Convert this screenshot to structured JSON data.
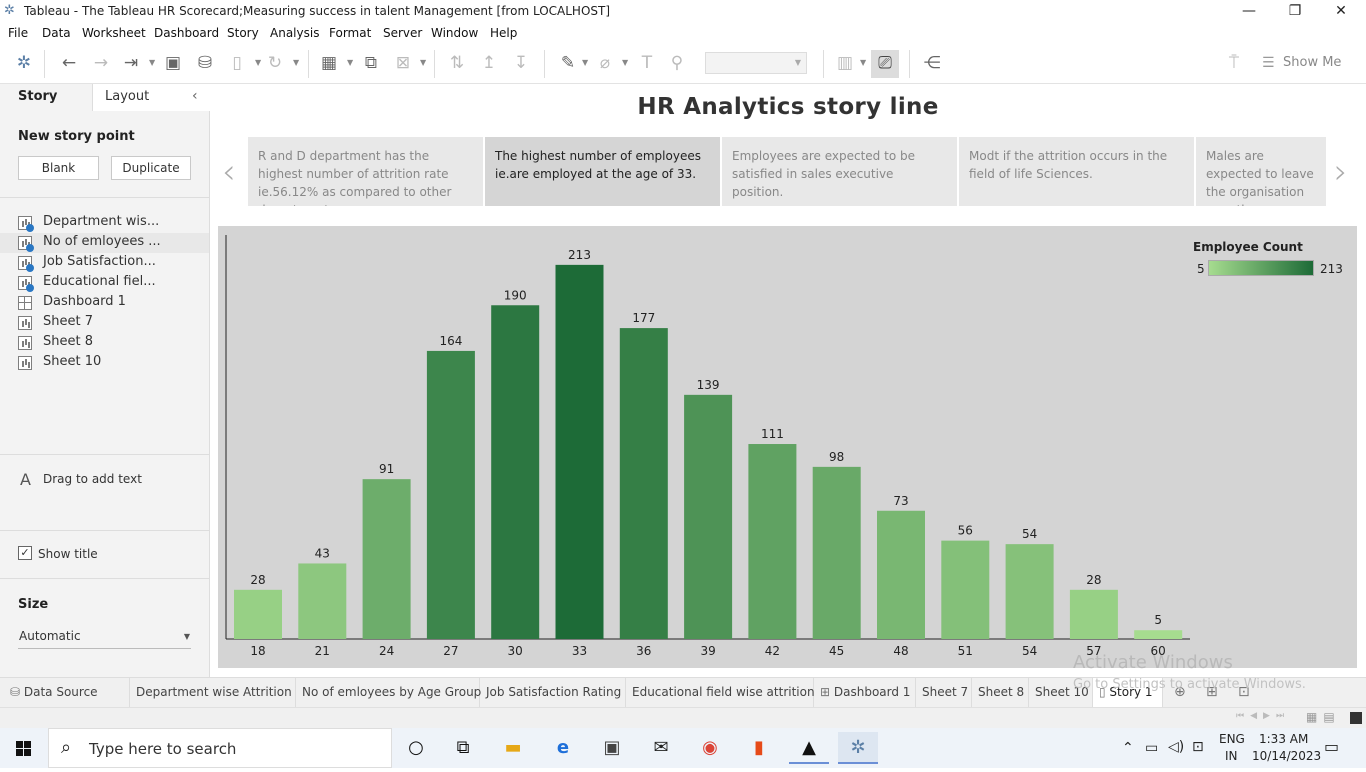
{
  "window": {
    "title": "Tableau - The Tableau HR Scorecard;Measuring success in talent Management [from LOCALHOST]",
    "minimize": "—",
    "restore": "❐",
    "close": "✕"
  },
  "menu": [
    "File",
    "Data",
    "Worksheet",
    "Dashboard",
    "Story",
    "Analysis",
    "Format",
    "Server",
    "Window",
    "Help"
  ],
  "toolbar": {
    "show_me": "Show Me"
  },
  "left_pane": {
    "tab_story": "Story",
    "tab_layout": "Layout",
    "collapse": "‹",
    "new_story_point": "New story point",
    "blank_button": "Blank",
    "duplicate_button": "Duplicate",
    "sheets": [
      {
        "label": "Department wis...",
        "kind": "sheet",
        "used": true
      },
      {
        "label": "No of emloyees ...",
        "kind": "sheet",
        "used": true
      },
      {
        "label": "Job Satisfaction...",
        "kind": "sheet",
        "used": true
      },
      {
        "label": "Educational fiel...",
        "kind": "sheet",
        "used": true
      },
      {
        "label": "Dashboard 1",
        "kind": "dashboard",
        "used": false
      },
      {
        "label": "Sheet 7",
        "kind": "sheet",
        "used": false
      },
      {
        "label": "Sheet 8",
        "kind": "sheet",
        "used": false
      },
      {
        "label": "Sheet 10",
        "kind": "sheet",
        "used": false
      }
    ],
    "text_icon": "A",
    "drag_text": "Drag to add text",
    "show_title": "Show title",
    "size_title": "Size",
    "size_value": "Automatic"
  },
  "story": {
    "title": "HR Analytics story line",
    "prev": "‹",
    "next": "›",
    "points": [
      "R and D department has the highest number of attrition rate ie.56.12% as compared to other departments.",
      "The highest number of employees ie.are employed at the age of 33.",
      "Employees are expected to be satisfied in sales executive position.",
      "Modt if the attrition occurs in the field of life Sciences.",
      "Males are expected to leave the organisation over the"
    ],
    "active_point": 1
  },
  "legend": {
    "title": "Employee Count",
    "min": "5",
    "max": "213",
    "color_low": "#a6dc8f",
    "color_high": "#1d6b37"
  },
  "chart_data": {
    "type": "bar",
    "categories": [
      "18",
      "21",
      "24",
      "27",
      "30",
      "33",
      "36",
      "39",
      "42",
      "45",
      "48",
      "51",
      "54",
      "57",
      "60"
    ],
    "values": [
      28,
      43,
      91,
      164,
      190,
      213,
      177,
      139,
      111,
      98,
      73,
      56,
      54,
      28,
      5
    ],
    "color_measure": "Employee Count",
    "color_range": [
      5,
      213
    ]
  },
  "sheet_tabs": [
    {
      "label": "Data Source",
      "icon": "datasource-icon"
    },
    {
      "label": "Department wise  Attrition"
    },
    {
      "label": "No of emloyees by Age Group"
    },
    {
      "label": "Job Satisfaction Rating"
    },
    {
      "label": "Educational field wise attrition"
    },
    {
      "label": "Dashboard 1",
      "icon": "dashboard-icon"
    },
    {
      "label": "Sheet 7"
    },
    {
      "label": "Sheet 8"
    },
    {
      "label": "Sheet 10"
    },
    {
      "label": "Story 1",
      "icon": "story-icon",
      "active": true
    }
  ],
  "watermark": {
    "line1": "Activate Windows",
    "line2": "Go to Settings to activate Windows."
  },
  "taskbar": {
    "search_placeholder": "Type here to search",
    "lang1": "ENG",
    "lang2": "IN",
    "time": "1:33 AM",
    "date": "10/14/2023"
  }
}
